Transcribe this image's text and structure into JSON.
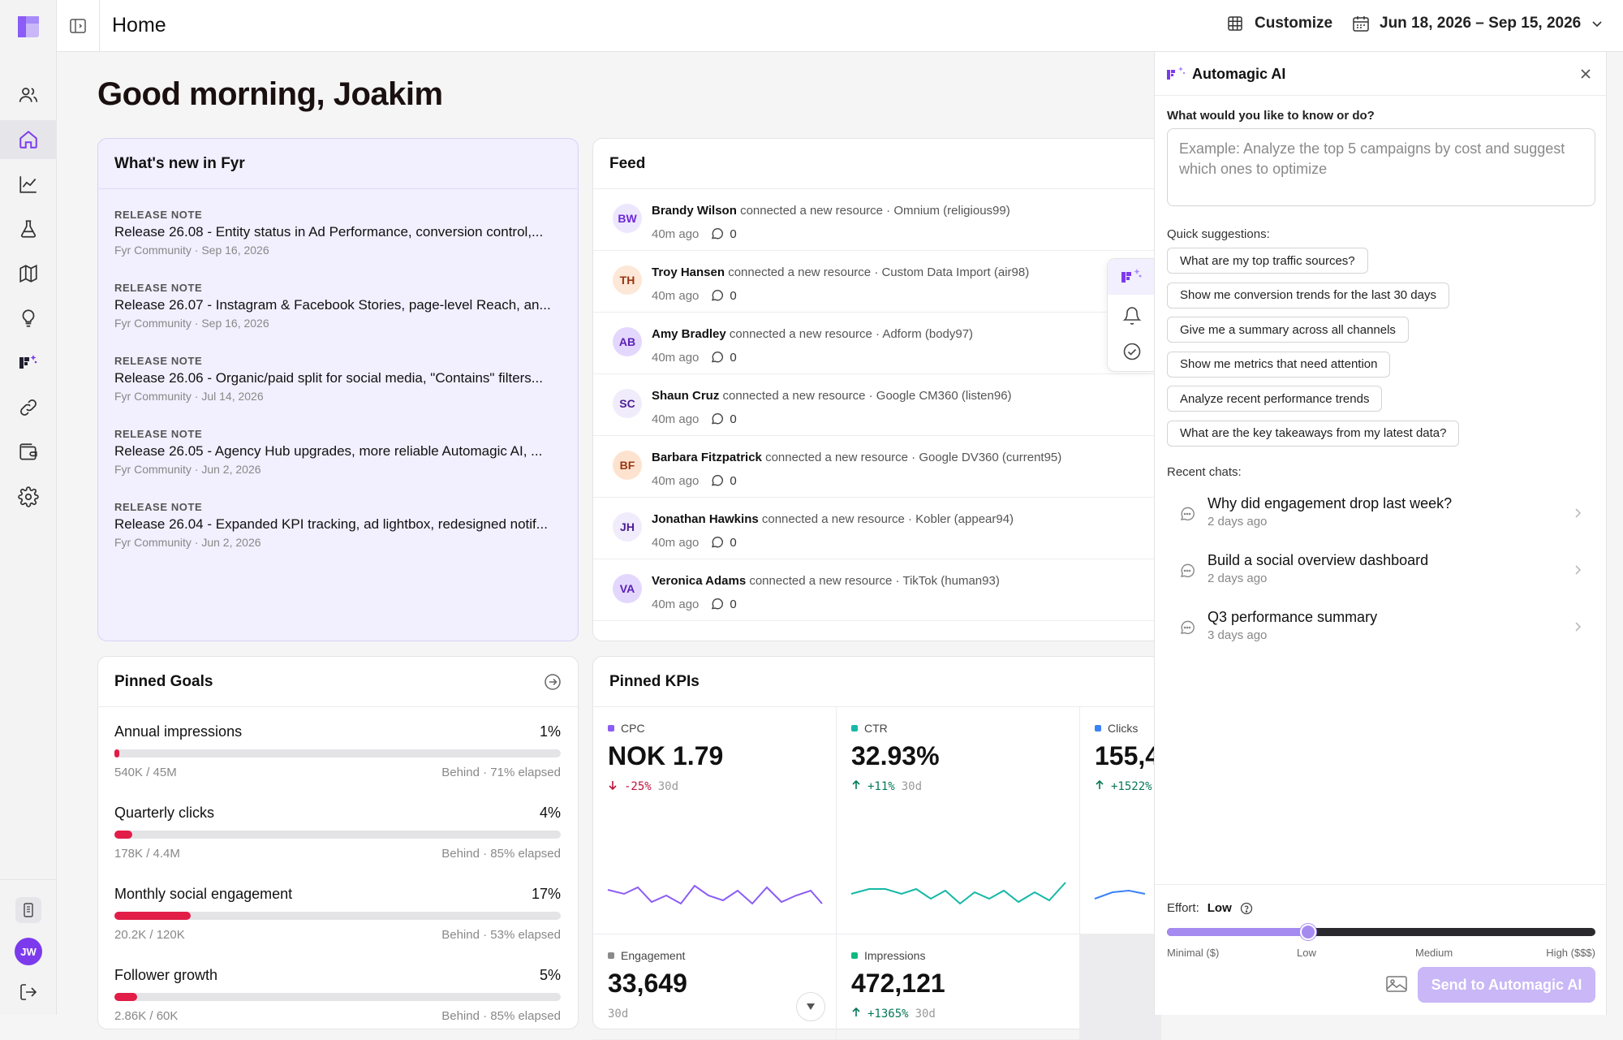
{
  "topbar": {
    "title": "Home",
    "customize_label": "Customize",
    "date_range": "Jun 18, 2026 – Sep 15, 2026"
  },
  "rail": {
    "items": [
      "users-icon",
      "home-icon",
      "chart-line-icon",
      "flask-icon",
      "map-icon",
      "lightbulb-icon",
      "automagic-icon",
      "link-icon",
      "wallet-icon",
      "gear-icon"
    ],
    "active": "home-icon",
    "user_initials": "JW"
  },
  "greeting": "Good morning, Joakim",
  "whats_new": {
    "title": "What's new in Fyr",
    "items": [
      {
        "kicker": "RELEASE NOTE",
        "title": "Release 26.08 - Entity status in Ad Performance, conversion control,...",
        "meta": "Fyr Community · Sep 16, 2026"
      },
      {
        "kicker": "RELEASE NOTE",
        "title": "Release 26.07 - Instagram & Facebook Stories, page-level Reach, an...",
        "meta": "Fyr Community · Sep 16, 2026"
      },
      {
        "kicker": "RELEASE NOTE",
        "title": "Release 26.06 - Organic/paid split for social media, \"Contains\" filters...",
        "meta": "Fyr Community · Jul 14, 2026"
      },
      {
        "kicker": "RELEASE NOTE",
        "title": "Release 26.05 - Agency Hub upgrades, more reliable Automagic AI, ...",
        "meta": "Fyr Community · Jun 2, 2026"
      },
      {
        "kicker": "RELEASE NOTE",
        "title": "Release 26.04 - Expanded KPI tracking, ad lightbox, redesigned notif...",
        "meta": "Fyr Community · Jun 2, 2026"
      }
    ]
  },
  "feed": {
    "title": "Feed",
    "items": [
      {
        "initials": "BW",
        "name": "Brandy Wilson",
        "action": "connected a new resource · Omnium (religious99)",
        "time": "40m ago",
        "comments": "0",
        "bg": "#ede7fe",
        "fg": "#6d28d9"
      },
      {
        "initials": "TH",
        "name": "Troy Hansen",
        "action": "connected a new resource · Custom Data Import (air98)",
        "time": "40m ago",
        "comments": "0",
        "bg": "#fde7d6",
        "fg": "#9a3412"
      },
      {
        "initials": "AB",
        "name": "Amy Bradley",
        "action": "connected a new resource · Adform (body97)",
        "time": "40m ago",
        "comments": "0",
        "bg": "#e4d7fd",
        "fg": "#5b21b6"
      },
      {
        "initials": "SC",
        "name": "Shaun Cruz",
        "action": "connected a new resource · Google CM360 (listen96)",
        "time": "40m ago",
        "comments": "0",
        "bg": "#f0ecfb",
        "fg": "#4c1d95"
      },
      {
        "initials": "BF",
        "name": "Barbara Fitzpatrick",
        "action": "connected a new resource · Google DV360 (current95)",
        "time": "40m ago",
        "comments": "0",
        "bg": "#fde3cf",
        "fg": "#9a3412"
      },
      {
        "initials": "JH",
        "name": "Jonathan Hawkins",
        "action": "connected a new resource · Kobler (appear94)",
        "time": "40m ago",
        "comments": "0",
        "bg": "#f0ecfb",
        "fg": "#4c1d95"
      },
      {
        "initials": "VA",
        "name": "Veronica Adams",
        "action": "connected a new resource · TikTok (human93)",
        "time": "40m ago",
        "comments": "0",
        "bg": "#e4d7fd",
        "fg": "#5b21b6"
      }
    ]
  },
  "goals": {
    "title": "Pinned Goals",
    "items": [
      {
        "name": "Annual impressions",
        "pct_label": "1%",
        "progress": 0.01,
        "sub": "540K / 45M",
        "status": "Behind · 71% elapsed"
      },
      {
        "name": "Quarterly clicks",
        "pct_label": "4%",
        "progress": 0.04,
        "sub": "178K / 4.4M",
        "status": "Behind · 85% elapsed"
      },
      {
        "name": "Monthly social engagement",
        "pct_label": "17%",
        "progress": 0.17,
        "sub": "20.2K / 120K",
        "status": "Behind · 53% elapsed"
      },
      {
        "name": "Follower growth",
        "pct_label": "5%",
        "progress": 0.05,
        "sub": "2.86K / 60K",
        "status": "Behind · 85% elapsed"
      }
    ]
  },
  "kpis": {
    "title": "Pinned KPIs",
    "items": [
      {
        "label": "CPC",
        "value": "NOK 1.79",
        "delta": "-25%",
        "direction": "down",
        "period": "30d",
        "color": "#8b5cf6",
        "delta_color": "#be123c"
      },
      {
        "label": "CTR",
        "value": "32.93%",
        "delta": "+11%",
        "direction": "up",
        "period": "30d",
        "color": "#14b8a6",
        "delta_color": "#047857"
      },
      {
        "label": "Clicks",
        "value": "155,4",
        "delta": "+1522%",
        "direction": "up",
        "period": "",
        "color": "#3b82f6",
        "delta_color": "#047857"
      },
      {
        "label": "Engagement",
        "value": "33,649",
        "delta": "",
        "direction": "",
        "period": "30d",
        "color": "#8a8a8a",
        "delta_color": "#999"
      },
      {
        "label": "Impressions",
        "value": "472,121",
        "delta": "+1365%",
        "direction": "up",
        "period": "30d",
        "color": "#10b981",
        "delta_color": "#047857"
      }
    ]
  },
  "ai_panel": {
    "title": "Automagic AI",
    "prompt_label": "What would you like to know or do?",
    "prompt_placeholder": "Example: Analyze the top 5 campaigns by cost and suggest which ones to optimize",
    "prompt_value": "",
    "quick_label": "Quick suggestions:",
    "suggestions": [
      "What are my top traffic sources?",
      "Show me conversion trends for the last 30 days",
      "Give me a summary across all channels",
      "Show me metrics that need attention",
      "Analyze recent performance trends",
      "What are the key takeaways from my latest data?"
    ],
    "recent_label": "Recent chats:",
    "recent": [
      {
        "title": "Why did engagement drop last week?",
        "when": "2 days ago"
      },
      {
        "title": "Build a social overview dashboard",
        "when": "2 days ago"
      },
      {
        "title": "Q3 performance summary",
        "when": "3 days ago"
      }
    ],
    "effort_label": "Effort:",
    "effort_value": "Low",
    "effort_level": 0.33,
    "effort_scale": [
      "Minimal ($)",
      "Low",
      "Medium",
      "High ($$$)"
    ],
    "send_label": "Send to Automagic AI"
  }
}
